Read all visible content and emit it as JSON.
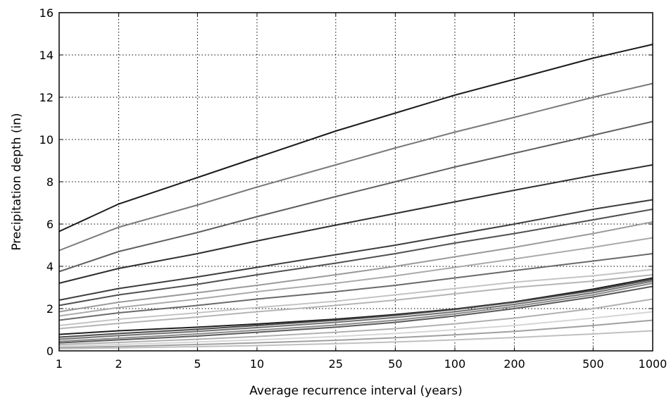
{
  "chart_data": {
    "type": "line",
    "xlabel": "Average recurrence interval (years)",
    "ylabel": "Precipitation depth (in)",
    "x_scale": "log",
    "xlim": [
      1,
      1000
    ],
    "ylim": [
      0,
      16
    ],
    "grid": true,
    "x": [
      1,
      2,
      5,
      10,
      25,
      50,
      100,
      200,
      500,
      1000
    ],
    "xticks": [
      "1",
      "2",
      "5",
      "10",
      "25",
      "50",
      "100",
      "200",
      "500",
      "1000"
    ],
    "yticks": [
      "0",
      "2",
      "4",
      "6",
      "8",
      "10",
      "12",
      "14",
      "16"
    ],
    "series": [
      {
        "color": "#1a1a1a",
        "values": [
          5.65,
          6.95,
          8.2,
          9.15,
          10.4,
          11.25,
          12.1,
          12.85,
          13.85,
          14.5
        ]
      },
      {
        "color": "#7a7a7a",
        "values": [
          4.75,
          5.85,
          6.9,
          7.75,
          8.8,
          9.6,
          10.35,
          11.05,
          12.0,
          12.65
        ]
      },
      {
        "color": "#5f5f5f",
        "values": [
          3.75,
          4.7,
          5.6,
          6.35,
          7.3,
          8.0,
          8.7,
          9.35,
          10.2,
          10.85
        ]
      },
      {
        "color": "#2e2e2e",
        "values": [
          3.2,
          3.9,
          4.6,
          5.2,
          5.95,
          6.5,
          7.05,
          7.6,
          8.3,
          8.8
        ]
      },
      {
        "color": "#3d3d3d",
        "values": [
          2.4,
          2.95,
          3.5,
          3.95,
          4.55,
          5.0,
          5.5,
          6.0,
          6.7,
          7.15
        ]
      },
      {
        "color": "#505050",
        "values": [
          2.15,
          2.65,
          3.15,
          3.6,
          4.15,
          4.6,
          5.1,
          5.55,
          6.2,
          6.7
        ]
      },
      {
        "color": "#9a9a9a",
        "values": [
          1.85,
          2.3,
          2.75,
          3.1,
          3.6,
          4.0,
          4.45,
          4.9,
          5.55,
          6.1
        ]
      },
      {
        "color": "#aaaaaa",
        "values": [
          1.65,
          2.05,
          2.45,
          2.8,
          3.2,
          3.55,
          3.95,
          4.35,
          4.9,
          5.35
        ]
      },
      {
        "color": "#6a6a6a",
        "values": [
          1.45,
          1.8,
          2.15,
          2.45,
          2.8,
          3.1,
          3.45,
          3.8,
          4.25,
          4.6
        ]
      },
      {
        "color": "#c4c4c4",
        "values": [
          1.2,
          1.5,
          1.8,
          2.05,
          2.35,
          2.65,
          2.95,
          3.25,
          3.55,
          3.85
        ]
      },
      {
        "color": "#b5b5b5",
        "values": [
          1.05,
          1.3,
          1.6,
          1.85,
          2.15,
          2.4,
          2.7,
          3.0,
          3.3,
          3.6
        ]
      },
      {
        "color": "#1f1f1f",
        "values": [
          0.78,
          0.95,
          1.12,
          1.27,
          1.5,
          1.72,
          1.98,
          2.32,
          2.92,
          3.45
        ]
      },
      {
        "color": "#4a4a4a",
        "values": [
          0.65,
          0.82,
          1.02,
          1.2,
          1.45,
          1.68,
          1.96,
          2.3,
          2.85,
          3.38
        ]
      },
      {
        "color": "#707070",
        "values": [
          0.55,
          0.72,
          0.92,
          1.1,
          1.35,
          1.58,
          1.85,
          2.2,
          2.75,
          3.3
        ]
      },
      {
        "color": "#8a8a8a",
        "values": [
          0.45,
          0.6,
          0.8,
          0.98,
          1.22,
          1.45,
          1.75,
          2.1,
          2.65,
          3.2
        ]
      },
      {
        "color": "#5a5a5a",
        "values": [
          0.38,
          0.52,
          0.7,
          0.88,
          1.12,
          1.35,
          1.65,
          2.0,
          2.55,
          3.05
        ]
      },
      {
        "color": "#b0b0b0",
        "values": [
          0.3,
          0.4,
          0.55,
          0.68,
          0.88,
          1.05,
          1.28,
          1.55,
          2.0,
          2.45
        ]
      },
      {
        "color": "#d6d6d6",
        "values": [
          0.22,
          0.3,
          0.42,
          0.52,
          0.68,
          0.82,
          1.0,
          1.2,
          1.55,
          1.85
        ]
      },
      {
        "color": "#a0a0a0",
        "values": [
          0.15,
          0.21,
          0.3,
          0.38,
          0.5,
          0.62,
          0.76,
          0.92,
          1.2,
          1.45
        ]
      },
      {
        "color": "#c0c0c0",
        "values": [
          0.1,
          0.14,
          0.2,
          0.25,
          0.34,
          0.42,
          0.52,
          0.63,
          0.8,
          0.95
        ]
      }
    ]
  }
}
